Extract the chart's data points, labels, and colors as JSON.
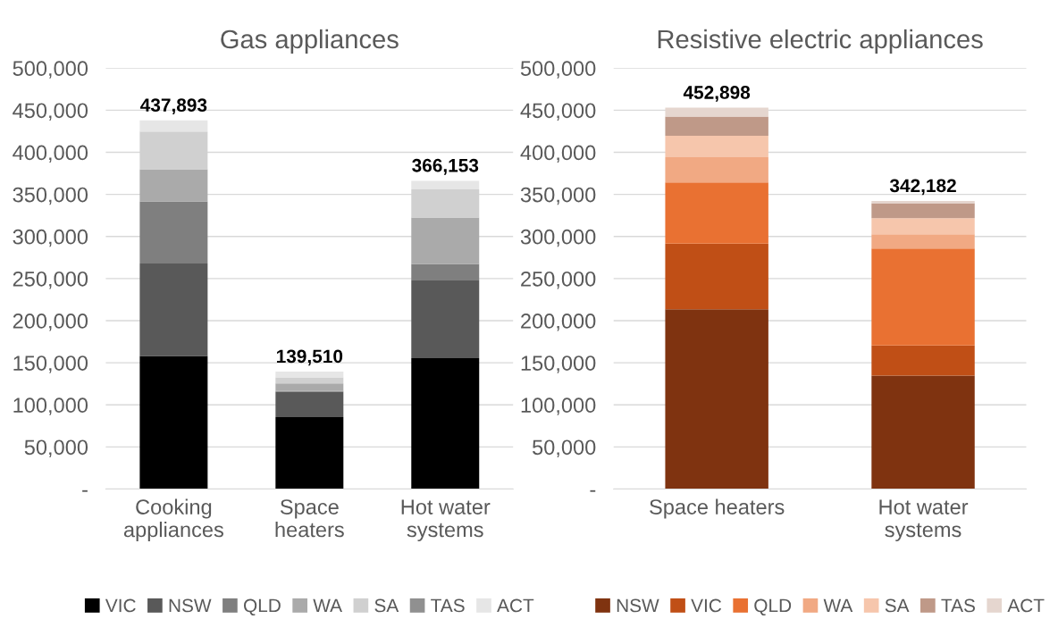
{
  "chart_data": [
    {
      "type": "bar",
      "title": "Gas appliances",
      "stacked": true,
      "categories": [
        "Cooking appliances",
        "Space heaters",
        "Hot water systems"
      ],
      "series": [
        {
          "name": "VIC",
          "color": "#000000",
          "values": [
            158000,
            85500,
            155500
          ]
        },
        {
          "name": "NSW",
          "color": "#595959",
          "values": [
            110000,
            29900,
            93100
          ]
        },
        {
          "name": "QLD",
          "color": "#7f7f7f",
          "values": [
            73600,
            1000,
            18700
          ]
        },
        {
          "name": "WA",
          "color": "#aaaaaa",
          "values": [
            38200,
            9000,
            55300
          ]
        },
        {
          "name": "SA",
          "color": "#d0d0d0",
          "values": [
            44900,
            7200,
            33400
          ]
        },
        {
          "name": "TAS",
          "color": "#909090",
          "values": [
            0,
            0,
            0
          ]
        },
        {
          "name": "ACT",
          "color": "#e6e6e6",
          "values": [
            13193,
            6910,
            10153
          ]
        }
      ],
      "totals": [
        "437,893",
        "139,510",
        "366,153"
      ],
      "ylim": [
        0,
        500000
      ],
      "yticks": [
        {
          "value": 0,
          "label": "-"
        },
        {
          "value": 50000,
          "label": "50,000"
        },
        {
          "value": 100000,
          "label": "100,000"
        },
        {
          "value": 150000,
          "label": "150,000"
        },
        {
          "value": 200000,
          "label": "200,000"
        },
        {
          "value": 250000,
          "label": "250,000"
        },
        {
          "value": 300000,
          "label": "300,000"
        },
        {
          "value": 350000,
          "label": "350,000"
        },
        {
          "value": 400000,
          "label": "400,000"
        },
        {
          "value": 450000,
          "label": "450,000"
        },
        {
          "value": 500000,
          "label": "500,000"
        }
      ],
      "grid": "y",
      "legend": "bottom"
    },
    {
      "type": "bar",
      "title": "Resistive electric appliances",
      "stacked": true,
      "categories": [
        "Space heaters",
        "Hot water systems"
      ],
      "series": [
        {
          "name": "NSW",
          "color": "#7f3310",
          "values": [
            213500,
            134700
          ]
        },
        {
          "name": "VIC",
          "color": "#c04f16",
          "values": [
            78100,
            35700
          ]
        },
        {
          "name": "QLD",
          "color": "#e97132",
          "values": [
            72500,
            115300
          ]
        },
        {
          "name": "WA",
          "color": "#f1a983",
          "values": [
            30100,
            17000
          ]
        },
        {
          "name": "SA",
          "color": "#f6c6ac",
          "values": [
            25400,
            19000
          ]
        },
        {
          "name": "TAS",
          "color": "#bf9988",
          "values": [
            22900,
            17800
          ]
        },
        {
          "name": "ACT",
          "color": "#e5d6cf",
          "values": [
            10398,
            2682
          ]
        }
      ],
      "totals": [
        "452,898",
        "342,182"
      ],
      "ylim": [
        0,
        500000
      ],
      "yticks": [
        {
          "value": 0,
          "label": "-"
        },
        {
          "value": 50000,
          "label": "50,000"
        },
        {
          "value": 100000,
          "label": "100,000"
        },
        {
          "value": 150000,
          "label": "150,000"
        },
        {
          "value": 200000,
          "label": "200,000"
        },
        {
          "value": 250000,
          "label": "250,000"
        },
        {
          "value": 300000,
          "label": "300,000"
        },
        {
          "value": 350000,
          "label": "350,000"
        },
        {
          "value": 400000,
          "label": "400,000"
        },
        {
          "value": 450000,
          "label": "450,000"
        },
        {
          "value": 500000,
          "label": "500,000"
        }
      ],
      "grid": "y",
      "legend": "bottom"
    }
  ]
}
